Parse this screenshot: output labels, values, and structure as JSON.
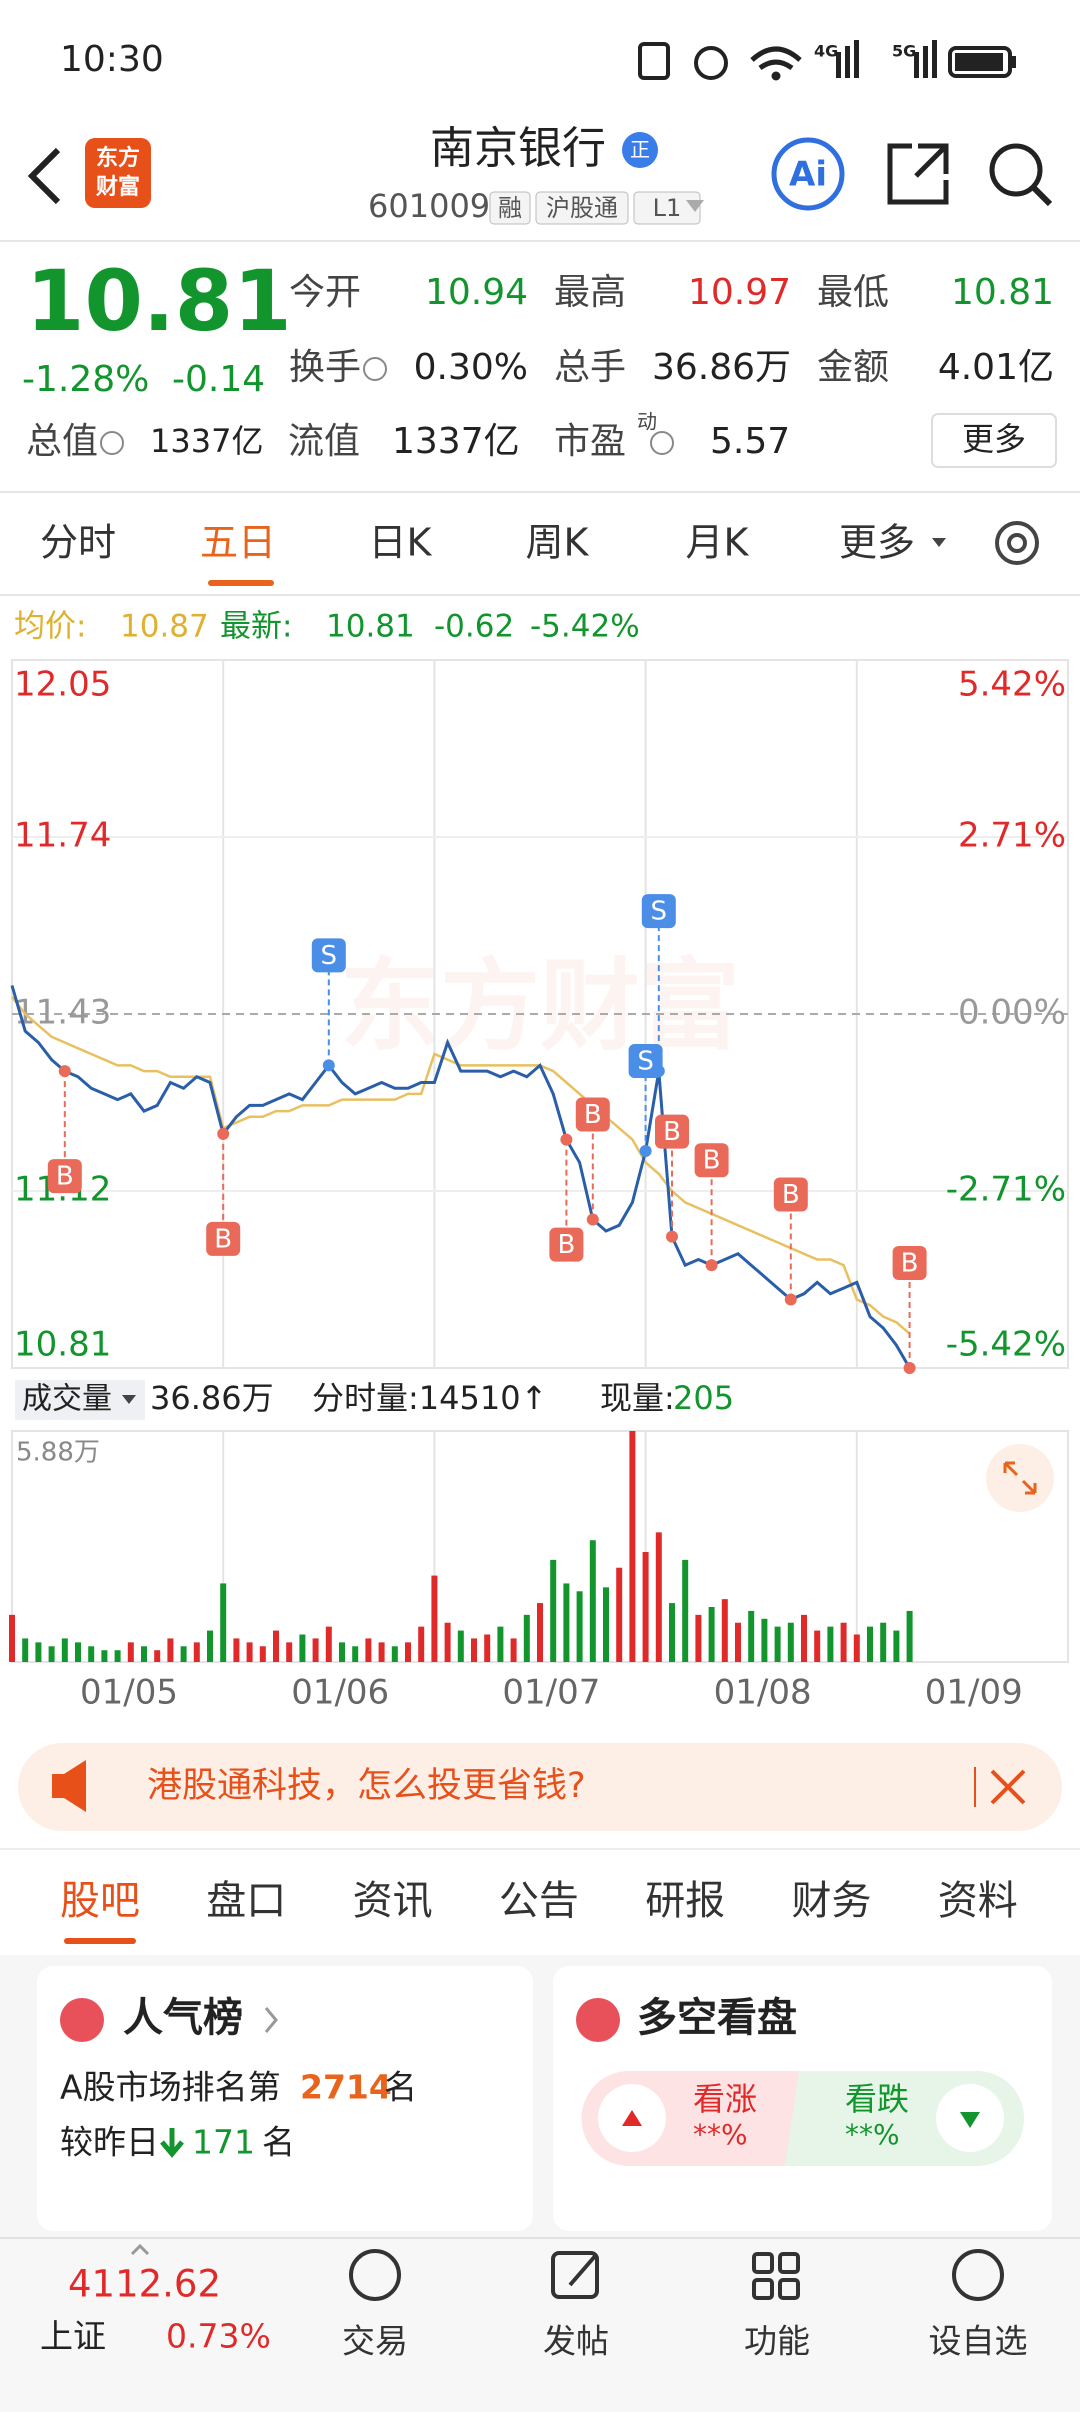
{
  "status_bar": {
    "time": "10:30",
    "net1": "4G",
    "net2": "5G"
  },
  "header": {
    "logo_line1": "东方",
    "logo_line2": "财富",
    "title": "南京银行",
    "badge": "正",
    "code": "601009",
    "tags": [
      "融",
      "沪股通",
      "L1"
    ],
    "ai": "Ai"
  },
  "quote": {
    "price": "10.81",
    "change_pct": "-1.28%",
    "change": "-0.14",
    "fields": [
      {
        "label": "今开",
        "value": "10.94"
      },
      {
        "label": "最高",
        "value": "10.97"
      },
      {
        "label": "最低",
        "value": "10.81"
      },
      {
        "label": "换手",
        "value": "0.30%"
      },
      {
        "label": "总手",
        "value": "36.86万"
      },
      {
        "label": "金额",
        "value": "4.01亿"
      },
      {
        "label": "总值",
        "value": "1337亿"
      },
      {
        "label": "流值",
        "value": "1337亿"
      },
      {
        "label": "市盈",
        "sup": "动",
        "value": "5.57"
      }
    ],
    "more": "更多"
  },
  "tabs": [
    "分时",
    "五日",
    "日K",
    "周K",
    "月K",
    "更多"
  ],
  "chart": {
    "avg_label": "均价:",
    "avg": "10.87",
    "latest_label": "最新:",
    "latest": "10.81",
    "change": "-0.62",
    "change_pct": "-5.42%",
    "ylim": [
      10.81,
      12.05
    ],
    "yticks": [
      12.05,
      11.74,
      11.43,
      11.12,
      10.81
    ],
    "pct_labels": [
      "5.42%",
      "2.71%",
      "0.00%",
      "-2.71%",
      "-5.42%"
    ],
    "watermark": "东方财富",
    "prices": [
      11.48,
      11.4,
      11.38,
      11.35,
      11.33,
      11.32,
      11.3,
      11.29,
      11.28,
      11.29,
      11.26,
      11.27,
      11.31,
      11.3,
      11.32,
      11.31,
      11.22,
      11.25,
      11.27,
      11.27,
      11.28,
      11.29,
      11.28,
      11.31,
      11.34,
      11.31,
      11.29,
      11.3,
      11.31,
      11.3,
      11.3,
      11.31,
      11.31,
      11.38,
      11.33,
      11.33,
      11.33,
      11.32,
      11.33,
      11.32,
      11.34,
      11.29,
      11.21,
      11.17,
      11.07,
      11.05,
      11.06,
      11.1,
      11.19,
      11.33,
      11.04,
      10.99,
      11.0,
      10.99,
      11.0,
      11.01,
      10.99,
      10.97,
      10.95,
      10.93,
      10.94,
      10.96,
      10.94,
      10.95,
      10.96,
      10.9,
      10.88,
      10.85,
      10.81
    ],
    "avg_prices": [
      11.46,
      11.43,
      11.41,
      11.39,
      11.38,
      11.37,
      11.36,
      11.35,
      11.34,
      11.34,
      11.33,
      11.33,
      11.32,
      11.32,
      11.32,
      11.32,
      11.23,
      11.24,
      11.25,
      11.25,
      11.26,
      11.26,
      11.27,
      11.27,
      11.27,
      11.28,
      11.28,
      11.28,
      11.28,
      11.28,
      11.29,
      11.29,
      11.36,
      11.35,
      11.34,
      11.34,
      11.34,
      11.34,
      11.34,
      11.34,
      11.34,
      11.33,
      11.31,
      11.29,
      11.27,
      11.25,
      11.23,
      11.21,
      11.17,
      11.15,
      11.12,
      11.1,
      11.09,
      11.08,
      11.07,
      11.06,
      11.05,
      11.04,
      11.03,
      11.02,
      11.01,
      11.0,
      11.0,
      10.99,
      10.93,
      10.92,
      10.9,
      10.89,
      10.87
    ],
    "trades": [
      {
        "label": "B",
        "index": 4
      },
      {
        "label": "B",
        "index": 16
      },
      {
        "label": "S",
        "index": 24
      },
      {
        "label": "B",
        "index": 42
      },
      {
        "label": "B",
        "index": 44
      },
      {
        "label": "S",
        "index": 48
      },
      {
        "label": "S",
        "index": 49
      },
      {
        "label": "B",
        "index": 50
      },
      {
        "label": "B",
        "index": 53
      },
      {
        "label": "B",
        "index": 59
      },
      {
        "label": "B",
        "index": 68
      }
    ],
    "volume_label": "成交量",
    "volume_total": "36.86万",
    "minute_volume": "分时量:14510↑",
    "current_volume_label": "现量:",
    "current_volume": "205",
    "volume_max_label": "5.88万",
    "volume_max": 5.88,
    "volumes": [
      1.2,
      0.6,
      0.5,
      0.4,
      0.6,
      0.5,
      0.4,
      0.3,
      0.3,
      0.5,
      0.4,
      0.3,
      0.6,
      0.4,
      0.5,
      0.8,
      2.0,
      0.6,
      0.5,
      0.4,
      0.8,
      0.5,
      0.7,
      0.6,
      0.9,
      0.5,
      0.4,
      0.6,
      0.5,
      0.4,
      0.5,
      0.9,
      2.2,
      1.0,
      0.8,
      0.6,
      0.7,
      0.9,
      0.6,
      1.2,
      1.5,
      2.6,
      2.0,
      1.8,
      3.1,
      1.9,
      2.4,
      5.88,
      2.8,
      3.3,
      1.5,
      2.6,
      1.2,
      1.4,
      1.6,
      1.0,
      1.3,
      1.1,
      0.9,
      1.0,
      1.2,
      0.8,
      0.9,
      1.0,
      0.7,
      0.9,
      1.0,
      0.8,
      1.3
    ],
    "dates": [
      "01/05",
      "01/06",
      "01/07",
      "01/08",
      "01/09"
    ]
  },
  "banner": {
    "text": "港股通科技，怎么投更省钱?"
  },
  "sub_tabs": [
    "股吧",
    "盘口",
    "资讯",
    "公告",
    "研报",
    "财务",
    "资料"
  ],
  "cards": {
    "rank_title": "人气榜",
    "rank_prefix": "A股市场排名第",
    "rank": "2714",
    "rank_suffix": "名",
    "change_prefix": "较昨日",
    "change": "171",
    "change_suffix": "名",
    "vote_title": "多空看盘",
    "up_label": "看涨",
    "up_value": "**%",
    "down_label": "看跌",
    "down_value": "**%"
  },
  "bottom_nav": {
    "index_value": "4112.62",
    "index_name": "上证",
    "index_change": "0.73%",
    "items": [
      "交易",
      "发帖",
      "功能",
      "设自选"
    ]
  }
}
